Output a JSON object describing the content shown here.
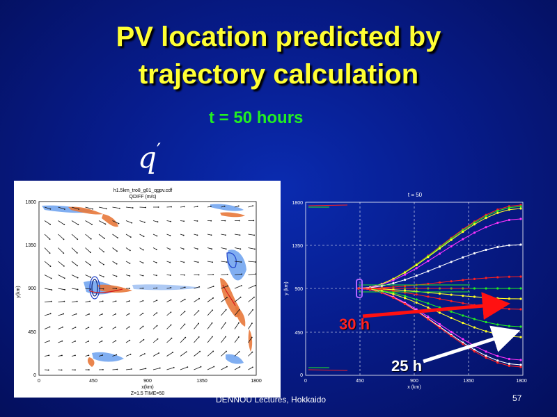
{
  "slide": {
    "title_line1": "PV location predicted by",
    "title_line2": "trajectory calculation",
    "subtitle": "t = 50 hours",
    "symbol_base": "q",
    "symbol_prime": "′",
    "footer": "DENNOU Lectures, Hokkaido",
    "page_number": "57",
    "colors": {
      "title": "#ffff33",
      "subtitle": "#22ee22",
      "background": "#071c8c"
    }
  },
  "left_plot": {
    "header_line1": "h1.5km_tro8_g01_qgpv.cdf",
    "header_line2": "QDIFF (m/s)",
    "footer": "Z=1.5  TIME=50",
    "xlabel": "x(km)",
    "ylabel": "y(km)",
    "x_ticks": [
      "0",
      "450",
      "900",
      "1350",
      "1800"
    ],
    "y_ticks": [
      "0",
      "450",
      "900",
      "1350",
      "1800"
    ]
  },
  "right_plot": {
    "title": "t = 50",
    "xlabel": "x (km)",
    "ylabel": "y (km)",
    "x_ticks": [
      "0",
      "450",
      "900",
      "1350",
      "1800"
    ],
    "y_ticks": [
      "0",
      "450",
      "900",
      "1350",
      "1800"
    ]
  },
  "annotations": {
    "label_30h": "30 h",
    "label_25h": "25 h",
    "color_30h": "#ff1111",
    "color_25h": "#ffffff"
  }
}
